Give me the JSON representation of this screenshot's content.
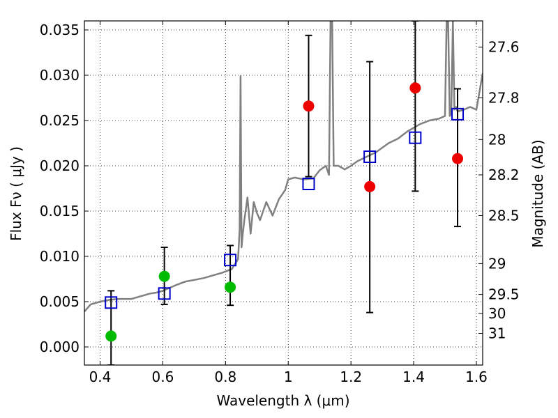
{
  "chart_data": {
    "type": "scatter",
    "xlabel": "Wavelength  λ (μm)",
    "ylabel": "Flux  Fν  ( μJy )",
    "ylabel_right": "Magnitude (AB)",
    "xlim": [
      0.35,
      1.62
    ],
    "ylim": [
      -0.002,
      0.036
    ],
    "grid": true,
    "x_ticks": [
      0.4,
      0.6,
      0.8,
      1.0,
      1.2,
      1.4,
      1.6
    ],
    "x_tick_labels": [
      "0.4",
      "0.6",
      "0.8",
      "1",
      "1.2",
      "1.4",
      "1.6"
    ],
    "y_ticks": [
      0.0,
      0.005,
      0.01,
      0.015,
      0.02,
      0.025,
      0.03,
      0.035
    ],
    "y_tick_labels": [
      "0.000",
      "0.005",
      "0.010",
      "0.015",
      "0.020",
      "0.025",
      "0.030",
      "0.035"
    ],
    "right_ticks": [
      {
        "label": "27.6",
        "flux": 0.0331
      },
      {
        "label": "27.8",
        "flux": 0.0275
      },
      {
        "label": "28",
        "flux": 0.0229
      },
      {
        "label": "28.2",
        "flux": 0.019
      },
      {
        "label": "28.5",
        "flux": 0.0145
      },
      {
        "label": "29",
        "flux": 0.0092
      },
      {
        "label": "29.5",
        "flux": 0.0058
      },
      {
        "label": "30",
        "flux": 0.0037
      },
      {
        "label": "31",
        "flux": 0.0015
      }
    ],
    "series": [
      {
        "kind": "model_spectrum",
        "color": "#808080",
        "x": [
          0.35,
          0.37,
          0.4,
          0.43,
          0.46,
          0.5,
          0.53,
          0.56,
          0.58,
          0.6,
          0.62,
          0.64,
          0.67,
          0.7,
          0.73,
          0.76,
          0.79,
          0.82,
          0.84,
          0.845,
          0.848,
          0.851,
          0.855,
          0.86,
          0.87,
          0.88,
          0.89,
          0.9,
          0.91,
          0.93,
          0.95,
          0.97,
          0.99,
          1.0,
          1.02,
          1.05,
          1.08,
          1.1,
          1.12,
          1.13,
          1.135,
          1.14,
          1.145,
          1.16,
          1.18,
          1.2,
          1.22,
          1.25,
          1.28,
          1.3,
          1.32,
          1.35,
          1.38,
          1.4,
          1.42,
          1.45,
          1.48,
          1.5,
          1.505,
          1.51,
          1.515,
          1.52,
          1.525,
          1.53,
          1.535,
          1.54,
          1.56,
          1.58,
          1.6,
          1.62
        ],
        "values": [
          0.0039,
          0.0047,
          0.005,
          0.0052,
          0.0053,
          0.0053,
          0.0056,
          0.0059,
          0.006,
          0.0062,
          0.0065,
          0.0068,
          0.0072,
          0.0074,
          0.0076,
          0.0079,
          0.0082,
          0.0086,
          0.0097,
          0.013,
          0.0299,
          0.011,
          0.0125,
          0.014,
          0.0165,
          0.0125,
          0.016,
          0.0148,
          0.014,
          0.016,
          0.0145,
          0.0163,
          0.0173,
          0.0185,
          0.0187,
          0.0185,
          0.0186,
          0.0195,
          0.02,
          0.019,
          0.036,
          0.036,
          0.02,
          0.02,
          0.0196,
          0.02,
          0.0205,
          0.021,
          0.0215,
          0.022,
          0.0225,
          0.023,
          0.0238,
          0.0242,
          0.0246,
          0.025,
          0.0252,
          0.0255,
          0.036,
          0.036,
          0.0255,
          0.0258,
          0.036,
          0.0262,
          0.0265,
          0.026,
          0.0262,
          0.0265,
          0.0262,
          0.0302
        ]
      },
      {
        "kind": "open_squares",
        "color": "#0000cc",
        "x": [
          0.435,
          0.605,
          0.815,
          1.065,
          1.26,
          1.405,
          1.54
        ],
        "values": [
          0.0049,
          0.0059,
          0.0096,
          0.018,
          0.021,
          0.0231,
          0.0257
        ]
      },
      {
        "kind": "green_points",
        "color": "#00bb00",
        "x": [
          0.435,
          0.605,
          0.815
        ],
        "values": [
          0.0012,
          0.0078,
          0.0066
        ],
        "err_lo": [
          null,
          null,
          0.0046
        ],
        "err_hi": [
          null,
          null,
          0.0112
        ]
      },
      {
        "kind": "red_points",
        "color": "#ee0000",
        "x": [
          1.065,
          1.26,
          1.405,
          1.54
        ],
        "values": [
          0.0266,
          0.0177,
          0.0286,
          0.0208
        ],
        "err_lo": [
          0.0188,
          0.0038,
          0.0172,
          0.0133
        ],
        "err_hi": [
          0.0344,
          0.0315,
          0.036,
          0.0285
        ]
      },
      {
        "kind": "errorbars_only",
        "color": "#000000",
        "x": [
          0.435,
          0.605
        ],
        "err_lo": [
          -0.002,
          0.0047
        ],
        "err_hi": [
          0.0062,
          0.011
        ]
      }
    ]
  }
}
